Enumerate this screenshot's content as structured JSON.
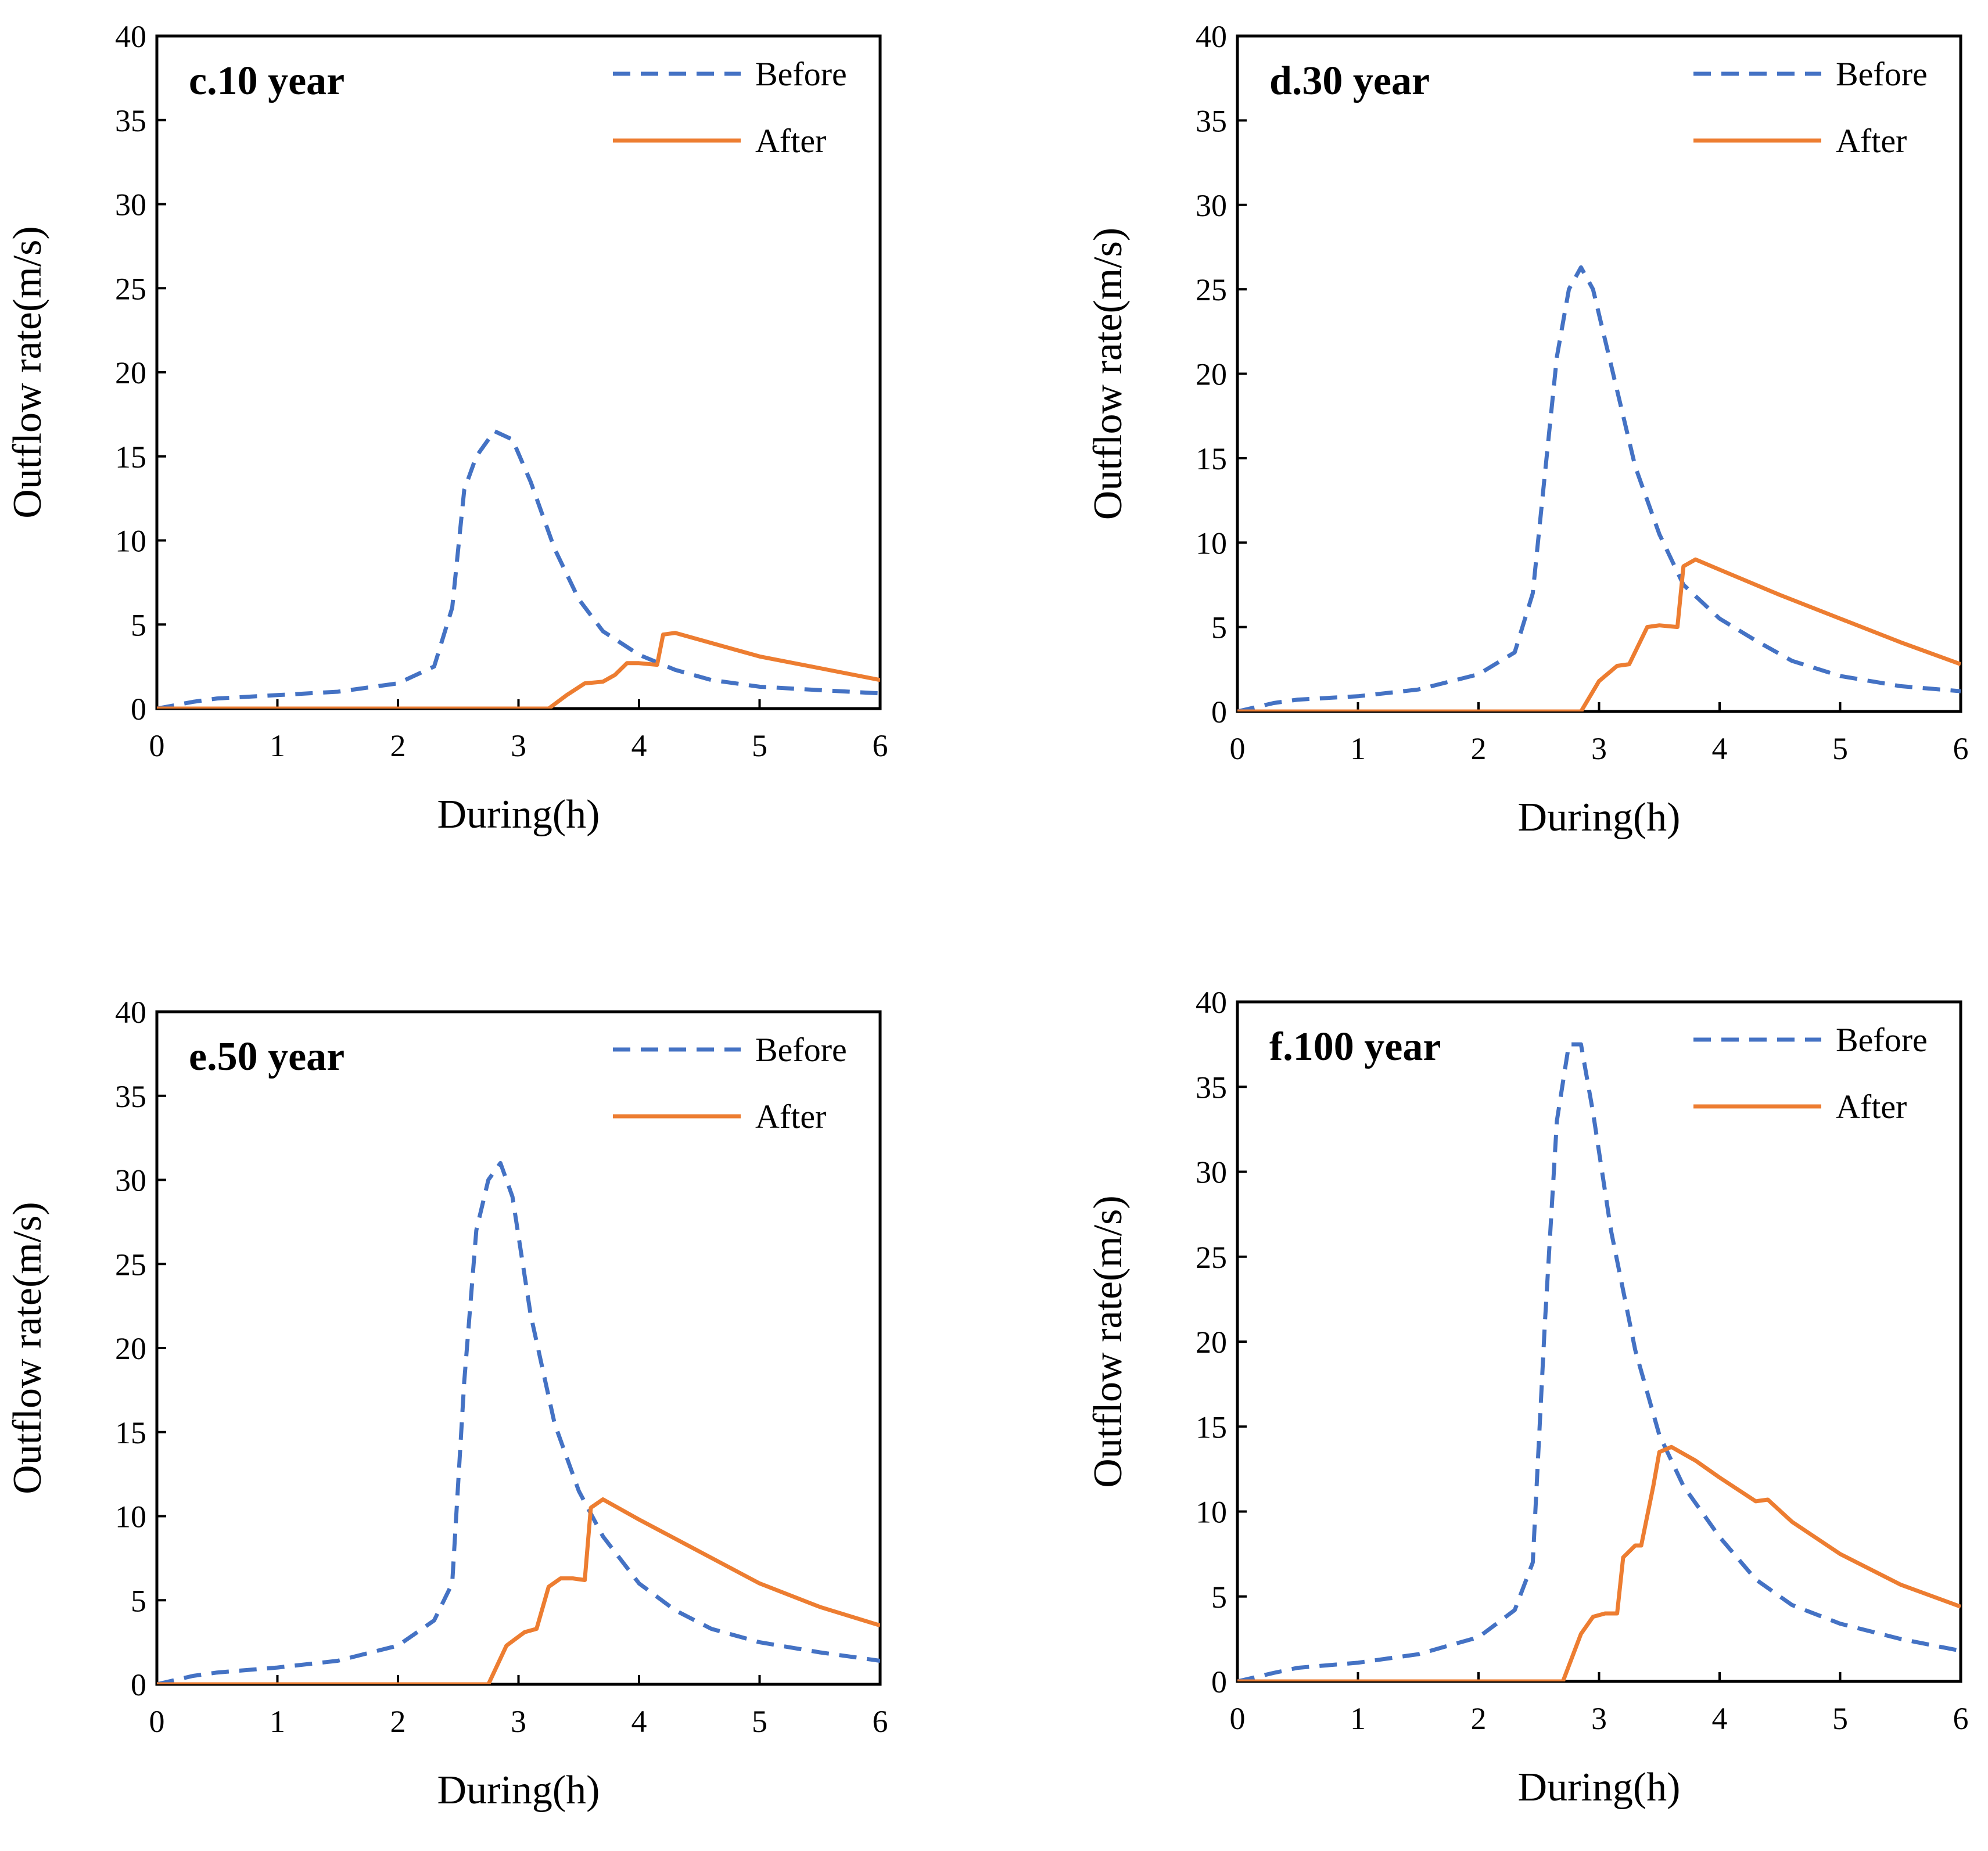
{
  "figure": {
    "background": "#ffffff"
  },
  "chart_data": [
    {
      "type": "line",
      "title": "c.10 year",
      "xlabel": "During(h)",
      "ylabel": "Outflow rate(m/s)",
      "xlim": [
        0,
        6
      ],
      "ylim": [
        0,
        40
      ],
      "xticks": [
        "0",
        "1",
        "2",
        "3",
        "4",
        "5",
        "6"
      ],
      "yticks": [
        "0",
        "5",
        "10",
        "15",
        "20",
        "25",
        "30",
        "35",
        "40"
      ],
      "grid": false,
      "legend": "top-right",
      "series": [
        {
          "name": "Before",
          "color": "#4472C4",
          "style": "dashed",
          "x": [
            0,
            0.3,
            0.5,
            1,
            1.5,
            2,
            2.3,
            2.45,
            2.55,
            2.65,
            2.8,
            2.95,
            3.1,
            3.3,
            3.5,
            3.7,
            4.0,
            4.3,
            4.6,
            5.0,
            5.5,
            6.0
          ],
          "y": [
            0,
            0.4,
            0.6,
            0.8,
            1.0,
            1.5,
            2.5,
            6.0,
            13.0,
            15.0,
            16.5,
            16.0,
            13.5,
            9.5,
            6.5,
            4.6,
            3.2,
            2.3,
            1.7,
            1.3,
            1.1,
            0.9
          ]
        },
        {
          "name": "After",
          "color": "#ED7D31",
          "style": "solid",
          "x": [
            0,
            3.25,
            3.4,
            3.55,
            3.7,
            3.8,
            3.9,
            4.0,
            4.15,
            4.2,
            4.3,
            4.6,
            5.0,
            5.5,
            6.0
          ],
          "y": [
            0,
            0,
            0.8,
            1.5,
            1.6,
            2.0,
            2.7,
            2.7,
            2.6,
            4.4,
            4.5,
            3.9,
            3.1,
            2.4,
            1.7
          ]
        }
      ]
    },
    {
      "type": "line",
      "title": "d.30 year",
      "xlabel": "During(h)",
      "ylabel": "Outflow rate(m/s)",
      "xlim": [
        0,
        6
      ],
      "ylim": [
        0,
        40
      ],
      "xticks": [
        "0",
        "1",
        "2",
        "3",
        "4",
        "5",
        "6"
      ],
      "yticks": [
        "0",
        "5",
        "10",
        "15",
        "20",
        "25",
        "30",
        "35",
        "40"
      ],
      "grid": false,
      "legend": "top-right",
      "series": [
        {
          "name": "Before",
          "color": "#4472C4",
          "style": "dashed",
          "x": [
            0,
            0.3,
            0.5,
            1,
            1.5,
            2,
            2.3,
            2.45,
            2.55,
            2.65,
            2.75,
            2.85,
            2.95,
            3.1,
            3.3,
            3.5,
            3.7,
            4.0,
            4.3,
            4.6,
            5.0,
            5.5,
            6.0
          ],
          "y": [
            0,
            0.5,
            0.7,
            0.9,
            1.3,
            2.2,
            3.5,
            7.0,
            14.0,
            21.0,
            25.0,
            26.3,
            25.0,
            20.5,
            14.5,
            10.5,
            7.5,
            5.5,
            4.2,
            3.0,
            2.1,
            1.5,
            1.2
          ]
        },
        {
          "name": "After",
          "color": "#ED7D31",
          "style": "solid",
          "x": [
            0,
            2.85,
            3.0,
            3.15,
            3.25,
            3.4,
            3.5,
            3.65,
            3.7,
            3.8,
            4.0,
            4.5,
            5.0,
            5.5,
            6.0
          ],
          "y": [
            0,
            0,
            1.8,
            2.7,
            2.8,
            5.0,
            5.1,
            5.0,
            8.6,
            9.0,
            8.4,
            6.9,
            5.5,
            4.1,
            2.8
          ]
        }
      ]
    },
    {
      "type": "line",
      "title": "e.50 year",
      "xlabel": "During(h)",
      "ylabel": "Outflow rate(m/s)",
      "xlim": [
        0,
        6
      ],
      "ylim": [
        0,
        40
      ],
      "xticks": [
        "0",
        "1",
        "2",
        "3",
        "4",
        "5",
        "6"
      ],
      "yticks": [
        "0",
        "5",
        "10",
        "15",
        "20",
        "25",
        "30",
        "35",
        "40"
      ],
      "grid": false,
      "legend": "top-right",
      "series": [
        {
          "name": "Before",
          "color": "#4472C4",
          "style": "dashed",
          "x": [
            0,
            0.3,
            0.5,
            1,
            1.5,
            2,
            2.3,
            2.45,
            2.55,
            2.65,
            2.75,
            2.85,
            2.95,
            3.1,
            3.3,
            3.5,
            3.7,
            4.0,
            4.3,
            4.6,
            5.0,
            5.5,
            6.0
          ],
          "y": [
            0,
            0.5,
            0.7,
            1.0,
            1.4,
            2.3,
            3.8,
            6.0,
            18.0,
            27.0,
            30.0,
            31.0,
            29.0,
            22.0,
            15.5,
            11.5,
            8.8,
            6.0,
            4.4,
            3.3,
            2.5,
            1.9,
            1.4
          ]
        },
        {
          "name": "After",
          "color": "#ED7D31",
          "style": "solid",
          "x": [
            0,
            2.75,
            2.9,
            3.05,
            3.15,
            3.25,
            3.35,
            3.45,
            3.55,
            3.6,
            3.7,
            4.0,
            4.5,
            5.0,
            5.5,
            6.0
          ],
          "y": [
            0,
            0,
            2.3,
            3.1,
            3.3,
            5.8,
            6.3,
            6.3,
            6.2,
            10.5,
            11.0,
            9.8,
            7.9,
            6.0,
            4.6,
            3.5
          ]
        }
      ]
    },
    {
      "type": "line",
      "title": "f.100 year",
      "xlabel": "During(h)",
      "ylabel": "Outflow rate(m/s)",
      "xlim": [
        0,
        6
      ],
      "ylim": [
        0,
        40
      ],
      "xticks": [
        "0",
        "1",
        "2",
        "3",
        "4",
        "5",
        "6"
      ],
      "yticks": [
        "0",
        "5",
        "10",
        "15",
        "20",
        "25",
        "30",
        "35",
        "40"
      ],
      "grid": false,
      "legend": "top-right",
      "series": [
        {
          "name": "Before",
          "color": "#4472C4",
          "style": "dashed",
          "x": [
            0,
            0.3,
            0.5,
            1,
            1.5,
            2,
            2.3,
            2.45,
            2.55,
            2.65,
            2.75,
            2.85,
            2.95,
            3.1,
            3.3,
            3.5,
            3.7,
            4.0,
            4.3,
            4.6,
            5.0,
            5.5,
            6.0
          ],
          "y": [
            0,
            0.5,
            0.8,
            1.1,
            1.6,
            2.6,
            4.2,
            7.0,
            21.0,
            33.0,
            37.5,
            37.5,
            33.5,
            26.5,
            19.5,
            14.5,
            11.5,
            8.5,
            6.0,
            4.5,
            3.4,
            2.5,
            1.8
          ]
        },
        {
          "name": "After",
          "color": "#ED7D31",
          "style": "solid",
          "x": [
            0,
            2.7,
            2.85,
            2.95,
            3.05,
            3.15,
            3.2,
            3.3,
            3.35,
            3.45,
            3.5,
            3.6,
            3.8,
            4.0,
            4.3,
            4.4,
            4.6,
            5.0,
            5.5,
            6.0
          ],
          "y": [
            0,
            0,
            2.8,
            3.8,
            4.0,
            4.0,
            7.3,
            8.0,
            8.0,
            11.5,
            13.5,
            13.8,
            13.0,
            12.0,
            10.6,
            10.7,
            9.4,
            7.5,
            5.7,
            4.4
          ]
        }
      ]
    }
  ]
}
